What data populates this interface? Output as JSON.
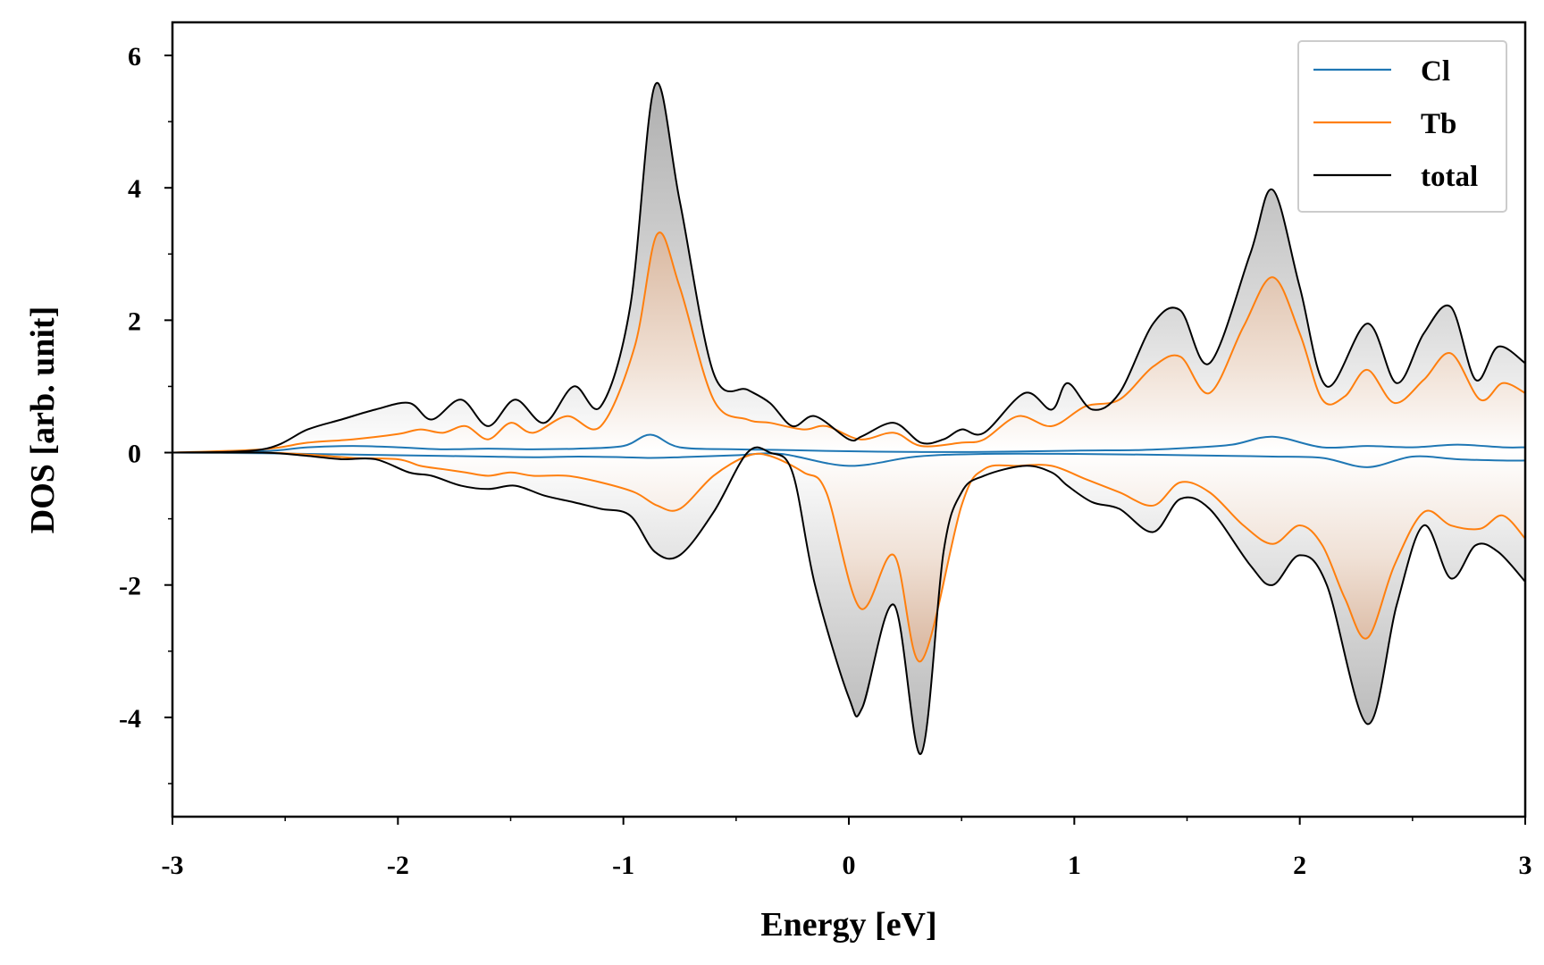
{
  "chart_data": {
    "type": "line",
    "xlabel": "Energy [eV]",
    "ylabel": "DOS [arb. unit]",
    "xlim": [
      -3,
      3
    ],
    "ylim": [
      -5.5,
      6.5
    ],
    "x_ticks": [
      -3,
      -2,
      -1,
      0,
      1,
      2,
      3
    ],
    "y_ticks": [
      -4,
      -2,
      0,
      2,
      4,
      6
    ],
    "x_tick_labels": [
      "-3",
      "-2",
      "-1",
      "0",
      "1",
      "2",
      "3"
    ],
    "y_tick_labels": [
      "-4",
      "-2",
      "0",
      "2",
      "4",
      "6"
    ],
    "legend_position": "top-right",
    "fill_under_curves": true,
    "series": [
      {
        "name": "Cl",
        "color": "#1f77b4",
        "x": [
          -3,
          -2.6,
          -2.4,
          -2.2,
          -2.0,
          -1.8,
          -1.6,
          -1.4,
          -1.2,
          -1.0,
          -0.88,
          -0.75,
          -0.5,
          -0.3,
          0,
          0.3,
          0.6,
          1.0,
          1.3,
          1.5,
          1.7,
          1.88,
          2.1,
          2.3,
          2.5,
          2.7,
          2.9,
          3.0
        ],
        "up": [
          0,
          0.02,
          0.08,
          0.1,
          0.08,
          0.05,
          0.06,
          0.05,
          0.06,
          0.1,
          0.27,
          0.08,
          0.05,
          0.04,
          0.02,
          0.01,
          0.01,
          0.03,
          0.04,
          0.07,
          0.12,
          0.24,
          0.08,
          0.1,
          0.08,
          0.12,
          0.08,
          0.08
        ],
        "down": [
          0,
          -0.01,
          -0.02,
          -0.03,
          -0.04,
          -0.05,
          -0.06,
          -0.07,
          -0.06,
          -0.07,
          -0.08,
          -0.07,
          -0.04,
          -0.02,
          -0.2,
          -0.06,
          -0.02,
          -0.02,
          -0.03,
          -0.04,
          -0.05,
          -0.06,
          -0.08,
          -0.22,
          -0.06,
          -0.1,
          -0.12,
          -0.12
        ]
      },
      {
        "name": "Tb",
        "color": "#ff7f0e",
        "x": [
          -3,
          -2.6,
          -2.4,
          -2.2,
          -2.0,
          -1.9,
          -1.8,
          -1.7,
          -1.6,
          -1.5,
          -1.4,
          -1.25,
          -1.1,
          -0.95,
          -0.85,
          -0.75,
          -0.6,
          -0.45,
          -0.35,
          -0.2,
          -0.1,
          0.05,
          0.2,
          0.32,
          0.5,
          0.6,
          0.75,
          0.9,
          1.05,
          1.2,
          1.35,
          1.47,
          1.6,
          1.75,
          1.88,
          2.0,
          2.1,
          2.2,
          2.3,
          2.42,
          2.55,
          2.67,
          2.8,
          2.9,
          3.0
        ],
        "up": [
          0,
          0.05,
          0.15,
          0.2,
          0.28,
          0.35,
          0.3,
          0.4,
          0.2,
          0.45,
          0.3,
          0.55,
          0.4,
          1.6,
          3.3,
          2.5,
          0.8,
          0.5,
          0.45,
          0.35,
          0.4,
          0.2,
          0.3,
          0.1,
          0.15,
          0.2,
          0.55,
          0.4,
          0.7,
          0.8,
          1.3,
          1.45,
          0.9,
          1.9,
          2.65,
          1.8,
          0.8,
          0.85,
          1.25,
          0.75,
          1.1,
          1.5,
          0.8,
          1.05,
          0.9
        ],
        "down": [
          0,
          0,
          -0.03,
          -0.08,
          -0.1,
          -0.2,
          -0.25,
          -0.3,
          -0.35,
          -0.3,
          -0.35,
          -0.35,
          -0.45,
          -0.6,
          -0.8,
          -0.85,
          -0.35,
          -0.05,
          -0.05,
          -0.3,
          -0.6,
          -2.35,
          -1.55,
          -3.15,
          -0.8,
          -0.25,
          -0.2,
          -0.2,
          -0.4,
          -0.6,
          -0.8,
          -0.45,
          -0.6,
          -1.1,
          -1.38,
          -1.1,
          -1.4,
          -2.2,
          -2.8,
          -1.7,
          -0.9,
          -1.1,
          -1.15,
          -0.95,
          -1.3
        ]
      },
      {
        "name": "total",
        "color": "#000000",
        "x": [
          -3,
          -2.6,
          -2.4,
          -2.25,
          -2.1,
          -1.95,
          -1.85,
          -1.72,
          -1.6,
          -1.48,
          -1.35,
          -1.22,
          -1.1,
          -0.97,
          -0.86,
          -0.75,
          -0.6,
          -0.45,
          -0.35,
          -0.25,
          -0.15,
          0,
          0.06,
          0.2,
          0.32,
          0.42,
          0.5,
          0.6,
          0.78,
          0.9,
          0.97,
          1.08,
          1.2,
          1.35,
          1.47,
          1.6,
          1.78,
          1.88,
          2.0,
          2.12,
          2.3,
          2.43,
          2.55,
          2.67,
          2.78,
          2.88,
          3.0
        ],
        "up": [
          0,
          0.05,
          0.35,
          0.5,
          0.65,
          0.75,
          0.5,
          0.8,
          0.4,
          0.8,
          0.45,
          1.0,
          0.7,
          2.2,
          5.55,
          3.8,
          1.2,
          0.95,
          0.75,
          0.4,
          0.55,
          0.2,
          0.25,
          0.45,
          0.15,
          0.2,
          0.35,
          0.3,
          0.9,
          0.65,
          1.05,
          0.65,
          0.9,
          1.95,
          2.15,
          1.35,
          3.0,
          3.97,
          2.5,
          1.0,
          1.95,
          1.05,
          1.8,
          2.2,
          1.1,
          1.6,
          1.35
        ],
        "down": [
          0,
          0,
          -0.05,
          -0.1,
          -0.1,
          -0.3,
          -0.35,
          -0.5,
          -0.55,
          -0.5,
          -0.65,
          -0.75,
          -0.85,
          -0.95,
          -1.5,
          -1.55,
          -0.9,
          0,
          0,
          -0.3,
          -2.0,
          -3.7,
          -3.85,
          -2.3,
          -4.55,
          -1.5,
          -0.6,
          -0.35,
          -0.2,
          -0.3,
          -0.5,
          -0.75,
          -0.85,
          -1.2,
          -0.7,
          -0.85,
          -1.7,
          -2.0,
          -1.55,
          -2.0,
          -4.1,
          -2.3,
          -1.1,
          -1.9,
          -1.4,
          -1.5,
          -1.95
        ]
      }
    ]
  }
}
